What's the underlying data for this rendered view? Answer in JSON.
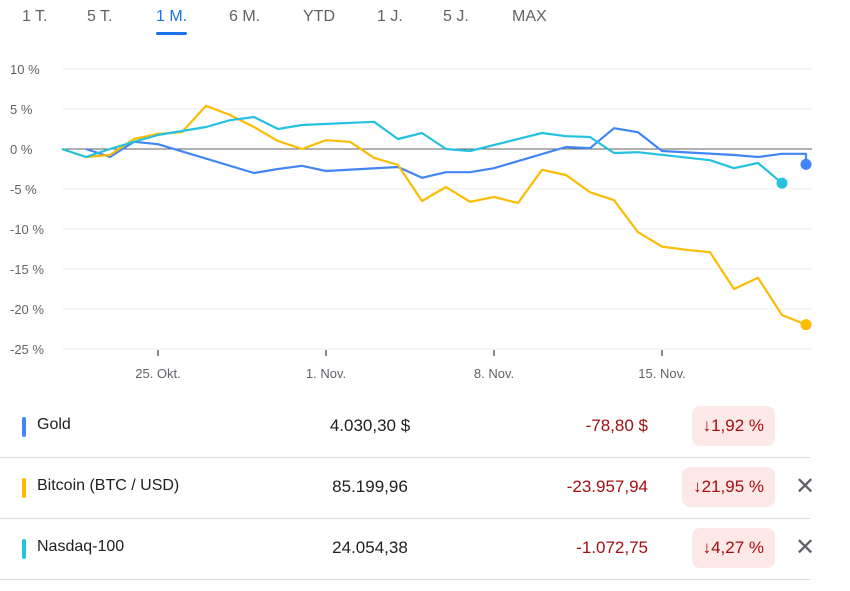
{
  "tabs": [
    {
      "label": "1 T."
    },
    {
      "label": "5 T."
    },
    {
      "label": "1 M.",
      "active": true
    },
    {
      "label": "6 M."
    },
    {
      "label": "YTD"
    },
    {
      "label": "1 J."
    },
    {
      "label": "5 J."
    },
    {
      "label": "MAX"
    }
  ],
  "chart_data": {
    "type": "line",
    "y_ticks": [
      "10 %",
      "5 %",
      "0 %",
      "-5 %",
      "-10 %",
      "-15 %",
      "-20 %",
      "-25 %"
    ],
    "ylim": [
      -25,
      10
    ],
    "x_unit": "day index from start of 1-month range",
    "xlim": [
      0,
      31
    ],
    "x_ticks": [
      {
        "label": "25. Okt.",
        "day": 4
      },
      {
        "label": "1. Nov.",
        "day": 11
      },
      {
        "label": "8. Nov.",
        "day": 18
      },
      {
        "label": "15. Nov.",
        "day": 25
      }
    ],
    "series": [
      {
        "name": "Gold",
        "color": "#4285f4",
        "points": [
          [
            1,
            0
          ],
          [
            2,
            -1
          ],
          [
            3,
            0.9
          ],
          [
            4,
            0.6
          ],
          [
            8,
            -3
          ],
          [
            9,
            -2.5
          ],
          [
            10,
            -2.1
          ],
          [
            11,
            -2.75
          ],
          [
            14,
            -2.25
          ],
          [
            15,
            -3.6
          ],
          [
            16,
            -2.9
          ],
          [
            17,
            -2.9
          ],
          [
            18,
            -2.4
          ],
          [
            21,
            0.25
          ],
          [
            22,
            0.1
          ],
          [
            23,
            2.6
          ],
          [
            24,
            2.1
          ],
          [
            25,
            -0.25
          ],
          [
            28,
            -0.75
          ],
          [
            29,
            -1.0
          ],
          [
            30,
            -0.6
          ],
          [
            31,
            -0.6
          ],
          [
            31,
            -1.92
          ]
        ]
      },
      {
        "name": "Bitcoin (BTC / USD)",
        "color": "#fbbc04",
        "points": [
          [
            0,
            0
          ],
          [
            1,
            -1
          ],
          [
            2,
            -0.75
          ],
          [
            3,
            1.25
          ],
          [
            4,
            1.9
          ],
          [
            5,
            2.1
          ],
          [
            6,
            5.4
          ],
          [
            7,
            4.25
          ],
          [
            8,
            2.75
          ],
          [
            9,
            1.0
          ],
          [
            10,
            0
          ],
          [
            11,
            1.1
          ],
          [
            12,
            0.9
          ],
          [
            13,
            -1.1
          ],
          [
            14,
            -2.0
          ],
          [
            15,
            -6.5
          ],
          [
            16,
            -4.75
          ],
          [
            17,
            -6.6
          ],
          [
            18,
            -6.0
          ],
          [
            19,
            -6.75
          ],
          [
            20,
            -2.6
          ],
          [
            21,
            -3.25
          ],
          [
            22,
            -5.4
          ],
          [
            23,
            -6.4
          ],
          [
            24,
            -10.4
          ],
          [
            25,
            -12.2
          ],
          [
            26,
            -12.6
          ],
          [
            27,
            -12.9
          ],
          [
            28,
            -17.5
          ],
          [
            29,
            -16.1
          ],
          [
            30,
            -20.75
          ],
          [
            31,
            -21.95
          ]
        ]
      },
      {
        "name": "Nasdaq-100",
        "color": "#24c1e0",
        "points": [
          [
            0,
            0
          ],
          [
            1,
            -1
          ],
          [
            2,
            0
          ],
          [
            3,
            0.9
          ],
          [
            4,
            1.75
          ],
          [
            5,
            2.25
          ],
          [
            6,
            2.75
          ],
          [
            7,
            3.6
          ],
          [
            8,
            4.0
          ],
          [
            9,
            2.5
          ],
          [
            10,
            3.0
          ],
          [
            13,
            3.4
          ],
          [
            14,
            1.25
          ],
          [
            15,
            2.0
          ],
          [
            16,
            0
          ],
          [
            17,
            -0.25
          ],
          [
            20,
            2.0
          ],
          [
            21,
            1.6
          ],
          [
            22,
            1.5
          ],
          [
            23,
            -0.5
          ],
          [
            24,
            -0.4
          ],
          [
            27,
            -1.4
          ],
          [
            28,
            -2.4
          ],
          [
            29,
            -1.75
          ],
          [
            30,
            -4.27
          ]
        ]
      }
    ]
  },
  "rows": [
    {
      "name": "Gold",
      "color": "#4285f4",
      "price": "4.030,30 $",
      "change": "-78,80 $",
      "percent": "↓1,92 %",
      "removable": false
    },
    {
      "name": "Bitcoin (BTC / USD)",
      "color": "#fbbc04",
      "price": "85.199,96",
      "change": "-23.957,94",
      "percent": "↓21,95 %",
      "removable": true,
      "close": "✕"
    },
    {
      "name": "Nasdaq-100",
      "color": "#24c1e0",
      "price": "24.054,38",
      "change": "-1.072,75",
      "percent": "↓4,27 %",
      "removable": true,
      "close": "✕"
    }
  ]
}
